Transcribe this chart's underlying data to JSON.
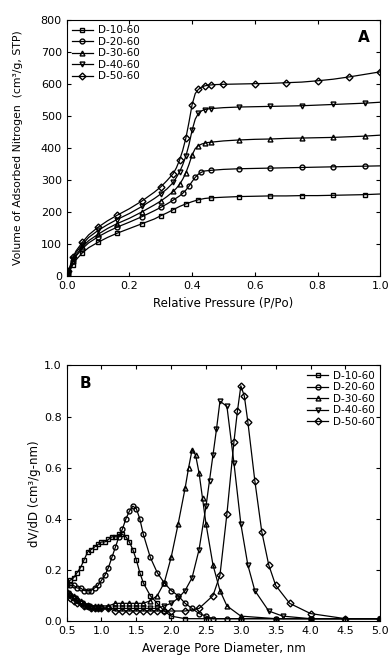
{
  "panel_A": {
    "title": "A",
    "xlabel": "Relative Pressure (P/Pᴏ)",
    "ylabel": "Volume of Adsorbed Nitrogen  (cm³/g, STP)",
    "xlim": [
      0.0,
      1.0
    ],
    "ylim": [
      0,
      800
    ],
    "yticks": [
      0,
      100,
      200,
      300,
      400,
      500,
      600,
      700,
      800
    ],
    "xticks": [
      0.0,
      0.2,
      0.4,
      0.6,
      0.8,
      1.0
    ],
    "series": [
      {
        "label": "D-10-60",
        "marker": "s",
        "x": [
          0.005,
          0.01,
          0.02,
          0.03,
          0.05,
          0.07,
          0.1,
          0.13,
          0.16,
          0.2,
          0.24,
          0.28,
          0.3,
          0.32,
          0.34,
          0.36,
          0.38,
          0.4,
          0.42,
          0.44,
          0.46,
          0.5,
          0.55,
          0.6,
          0.65,
          0.7,
          0.75,
          0.8,
          0.85,
          0.9,
          0.95,
          1.0
        ],
        "y": [
          5,
          15,
          35,
          50,
          72,
          88,
          105,
          120,
          133,
          148,
          163,
          178,
          188,
          197,
          207,
          217,
          225,
          232,
          238,
          242,
          244,
          246,
          248,
          249,
          250,
          250,
          251,
          251,
          252,
          253,
          254,
          256
        ]
      },
      {
        "label": "D-20-60",
        "marker": "o",
        "x": [
          0.005,
          0.01,
          0.02,
          0.03,
          0.05,
          0.07,
          0.1,
          0.13,
          0.16,
          0.2,
          0.24,
          0.28,
          0.3,
          0.32,
          0.34,
          0.36,
          0.37,
          0.38,
          0.39,
          0.4,
          0.41,
          0.42,
          0.43,
          0.44,
          0.46,
          0.5,
          0.55,
          0.6,
          0.65,
          0.7,
          0.75,
          0.8,
          0.85,
          0.9,
          0.95,
          1.0
        ],
        "y": [
          8,
          20,
          45,
          62,
          85,
          103,
          122,
          138,
          152,
          168,
          185,
          204,
          214,
          225,
          237,
          250,
          258,
          268,
          280,
          295,
          308,
          318,
          324,
          328,
          330,
          333,
          335,
          336,
          337,
          338,
          339,
          340,
          341,
          342,
          343,
          344
        ]
      },
      {
        "label": "D-30-60",
        "marker": "^",
        "x": [
          0.005,
          0.01,
          0.02,
          0.03,
          0.05,
          0.07,
          0.1,
          0.13,
          0.16,
          0.2,
          0.24,
          0.28,
          0.3,
          0.32,
          0.34,
          0.35,
          0.36,
          0.37,
          0.38,
          0.39,
          0.4,
          0.41,
          0.42,
          0.43,
          0.44,
          0.45,
          0.46,
          0.5,
          0.55,
          0.6,
          0.65,
          0.7,
          0.75,
          0.8,
          0.85,
          0.9,
          0.95,
          1.0
        ],
        "y": [
          10,
          22,
          48,
          66,
          90,
          110,
          130,
          148,
          163,
          180,
          200,
          222,
          234,
          248,
          264,
          274,
          286,
          302,
          322,
          348,
          378,
          398,
          407,
          412,
          415,
          417,
          418,
          422,
          425,
          427,
          428,
          430,
          431,
          432,
          433,
          435,
          437,
          440
        ]
      },
      {
        "label": "D-40-60",
        "marker": "v",
        "x": [
          0.005,
          0.01,
          0.02,
          0.03,
          0.05,
          0.07,
          0.1,
          0.13,
          0.16,
          0.2,
          0.24,
          0.28,
          0.3,
          0.32,
          0.34,
          0.35,
          0.36,
          0.37,
          0.38,
          0.39,
          0.4,
          0.41,
          0.42,
          0.43,
          0.44,
          0.45,
          0.46,
          0.5,
          0.55,
          0.6,
          0.65,
          0.7,
          0.75,
          0.8,
          0.85,
          0.9,
          0.95,
          1.0
        ],
        "y": [
          12,
          25,
          54,
          73,
          98,
          120,
          142,
          160,
          176,
          195,
          217,
          242,
          256,
          272,
          292,
          308,
          325,
          347,
          374,
          410,
          455,
          490,
          508,
          516,
          520,
          522,
          523,
          526,
          528,
          529,
          530,
          531,
          532,
          534,
          536,
          538,
          540,
          543
        ]
      },
      {
        "label": "D-50-60",
        "marker": "D",
        "x": [
          0.005,
          0.01,
          0.02,
          0.03,
          0.05,
          0.07,
          0.1,
          0.13,
          0.16,
          0.2,
          0.24,
          0.28,
          0.3,
          0.32,
          0.34,
          0.35,
          0.36,
          0.37,
          0.38,
          0.39,
          0.4,
          0.41,
          0.42,
          0.43,
          0.44,
          0.45,
          0.46,
          0.47,
          0.5,
          0.55,
          0.6,
          0.65,
          0.7,
          0.75,
          0.8,
          0.85,
          0.9,
          0.95,
          1.0
        ],
        "y": [
          14,
          28,
          58,
          78,
          105,
          128,
          152,
          172,
          189,
          210,
          234,
          262,
          278,
          298,
          320,
          338,
          362,
          392,
          430,
          480,
          535,
          570,
          583,
          590,
          594,
          596,
          597,
          598,
          599,
          600,
          601,
          602,
          604,
          606,
          610,
          615,
          622,
          630,
          638
        ]
      }
    ]
  },
  "panel_B": {
    "title": "B",
    "xlabel": "Average Pore Diameter, nm",
    "ylabel": "dV/dD (cm³/g-nm)",
    "xlim": [
      0.5,
      5.0
    ],
    "ylim": [
      0.0,
      1.0
    ],
    "yticks": [
      0.0,
      0.2,
      0.4,
      0.6,
      0.8,
      1.0
    ],
    "xticks": [
      0.5,
      1.0,
      1.5,
      2.0,
      2.5,
      3.0,
      3.5,
      4.0,
      4.5,
      5.0
    ],
    "series": [
      {
        "label": "D-10-60",
        "marker": "s",
        "x": [
          0.5,
          0.55,
          0.6,
          0.65,
          0.7,
          0.75,
          0.8,
          0.85,
          0.9,
          0.95,
          1.0,
          1.05,
          1.1,
          1.15,
          1.2,
          1.25,
          1.3,
          1.35,
          1.4,
          1.45,
          1.5,
          1.55,
          1.6,
          1.7,
          1.8,
          1.9,
          2.0,
          2.2,
          2.5,
          3.0,
          3.5,
          4.0,
          4.5,
          5.0
        ],
        "y": [
          0.15,
          0.16,
          0.17,
          0.19,
          0.21,
          0.24,
          0.27,
          0.28,
          0.29,
          0.3,
          0.31,
          0.31,
          0.32,
          0.33,
          0.33,
          0.34,
          0.34,
          0.33,
          0.31,
          0.28,
          0.24,
          0.19,
          0.15,
          0.1,
          0.07,
          0.04,
          0.02,
          0.01,
          0.01,
          0.01,
          0.01,
          0.01,
          0.01,
          0.01
        ]
      },
      {
        "label": "D-20-60",
        "marker": "o",
        "x": [
          0.5,
          0.55,
          0.6,
          0.65,
          0.7,
          0.75,
          0.8,
          0.85,
          0.9,
          0.95,
          1.0,
          1.05,
          1.1,
          1.15,
          1.2,
          1.25,
          1.3,
          1.35,
          1.4,
          1.45,
          1.5,
          1.55,
          1.6,
          1.7,
          1.8,
          1.9,
          2.0,
          2.1,
          2.2,
          2.3,
          2.4,
          2.5,
          2.6,
          2.8,
          3.0,
          3.5,
          4.0,
          5.0
        ],
        "y": [
          0.14,
          0.14,
          0.14,
          0.13,
          0.13,
          0.12,
          0.12,
          0.12,
          0.13,
          0.14,
          0.16,
          0.18,
          0.21,
          0.25,
          0.29,
          0.33,
          0.36,
          0.4,
          0.43,
          0.45,
          0.44,
          0.4,
          0.34,
          0.25,
          0.19,
          0.15,
          0.12,
          0.1,
          0.07,
          0.05,
          0.03,
          0.02,
          0.01,
          0.01,
          0.01,
          0.01,
          0.01,
          0.01
        ]
      },
      {
        "label": "D-30-60",
        "marker": "^",
        "x": [
          0.5,
          0.55,
          0.6,
          0.65,
          0.7,
          0.75,
          0.8,
          0.85,
          0.9,
          0.95,
          1.0,
          1.1,
          1.2,
          1.3,
          1.4,
          1.5,
          1.6,
          1.7,
          1.8,
          1.9,
          2.0,
          2.1,
          2.2,
          2.25,
          2.3,
          2.35,
          2.4,
          2.45,
          2.5,
          2.6,
          2.7,
          2.8,
          3.0,
          3.5,
          4.0,
          5.0
        ],
        "y": [
          0.12,
          0.11,
          0.1,
          0.09,
          0.08,
          0.07,
          0.06,
          0.06,
          0.06,
          0.06,
          0.06,
          0.06,
          0.07,
          0.07,
          0.07,
          0.07,
          0.07,
          0.08,
          0.1,
          0.15,
          0.25,
          0.38,
          0.52,
          0.6,
          0.67,
          0.65,
          0.58,
          0.48,
          0.38,
          0.22,
          0.12,
          0.06,
          0.02,
          0.01,
          0.01,
          0.01
        ]
      },
      {
        "label": "D-40-60",
        "marker": "v",
        "x": [
          0.5,
          0.55,
          0.6,
          0.65,
          0.7,
          0.75,
          0.8,
          0.85,
          0.9,
          0.95,
          1.0,
          1.1,
          1.2,
          1.3,
          1.4,
          1.5,
          1.6,
          1.7,
          1.8,
          1.9,
          2.0,
          2.1,
          2.2,
          2.3,
          2.4,
          2.5,
          2.55,
          2.6,
          2.65,
          2.7,
          2.8,
          2.9,
          3.0,
          3.1,
          3.2,
          3.4,
          3.6,
          4.0,
          5.0
        ],
        "y": [
          0.11,
          0.1,
          0.09,
          0.08,
          0.07,
          0.06,
          0.06,
          0.05,
          0.05,
          0.05,
          0.05,
          0.05,
          0.05,
          0.05,
          0.05,
          0.05,
          0.05,
          0.05,
          0.05,
          0.06,
          0.07,
          0.09,
          0.12,
          0.17,
          0.28,
          0.45,
          0.55,
          0.65,
          0.75,
          0.86,
          0.84,
          0.62,
          0.38,
          0.22,
          0.12,
          0.04,
          0.02,
          0.01,
          0.01
        ]
      },
      {
        "label": "D-50-60",
        "marker": "D",
        "x": [
          0.5,
          0.55,
          0.6,
          0.65,
          0.7,
          0.75,
          0.8,
          0.85,
          0.9,
          0.95,
          1.0,
          1.1,
          1.2,
          1.3,
          1.4,
          1.5,
          1.6,
          1.7,
          1.8,
          1.9,
          2.0,
          2.2,
          2.4,
          2.6,
          2.7,
          2.8,
          2.9,
          2.95,
          3.0,
          3.05,
          3.1,
          3.2,
          3.3,
          3.4,
          3.5,
          3.7,
          4.0,
          4.5,
          5.0
        ],
        "y": [
          0.1,
          0.09,
          0.08,
          0.07,
          0.07,
          0.06,
          0.06,
          0.05,
          0.05,
          0.05,
          0.05,
          0.05,
          0.04,
          0.04,
          0.04,
          0.04,
          0.04,
          0.04,
          0.04,
          0.04,
          0.04,
          0.04,
          0.05,
          0.1,
          0.18,
          0.42,
          0.7,
          0.82,
          0.92,
          0.88,
          0.78,
          0.55,
          0.35,
          0.22,
          0.14,
          0.07,
          0.03,
          0.01,
          0.01
        ]
      }
    ]
  },
  "figure": {
    "bg_color": "#ffffff",
    "line_color": "#000000",
    "marker_size": 3.5,
    "linewidth": 0.9,
    "marker_facecolor": "none"
  }
}
